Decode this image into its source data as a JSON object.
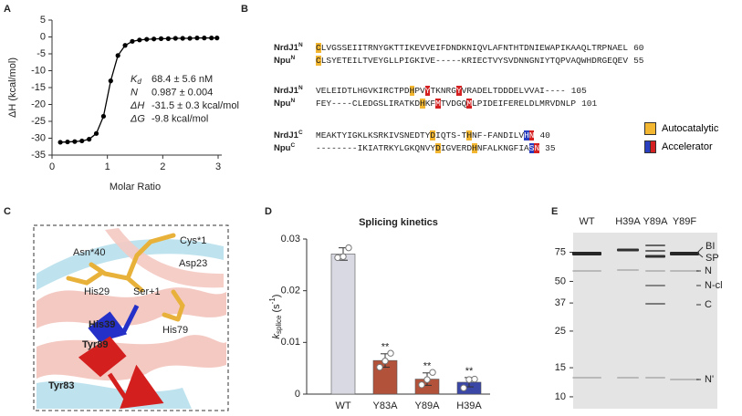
{
  "panels": [
    "A",
    "B",
    "C",
    "D",
    "E"
  ],
  "chart_data": [
    {
      "type": "line",
      "x_label": "Molar Ratio",
      "y_label": "ΔH (kcal/mol)",
      "x": [
        0.15,
        0.28,
        0.41,
        0.54,
        0.67,
        0.8,
        0.93,
        1.06,
        1.19,
        1.32,
        1.45,
        1.58,
        1.71,
        1.84,
        1.97,
        2.1,
        2.23,
        2.36,
        2.49,
        2.62,
        2.75,
        2.88,
        2.98
      ],
      "values": [
        -31.2,
        -31.1,
        -31,
        -30.8,
        -30.3,
        -28.6,
        -23.5,
        -13,
        -5.5,
        -2.5,
        -1.3,
        -0.9,
        -0.7,
        -0.6,
        -0.5,
        -0.5,
        -0.4,
        -0.4,
        -0.4,
        -0.3,
        -0.3,
        -0.3,
        -0.3
      ],
      "color": "#000000",
      "xlim": [
        0,
        3
      ],
      "xticks": [
        0,
        1,
        2,
        3
      ],
      "ylim": [
        -35,
        5
      ],
      "yticks": [
        5,
        0,
        -5,
        -10,
        -15,
        -20,
        -25,
        -30,
        -35
      ],
      "annotations": [
        {
          "symbol": "K",
          "sub": "d",
          "text": "68.4 ± 5.6 nM"
        },
        {
          "symbol": "N",
          "text": "0.987 ± 0.004"
        },
        {
          "symbol": "ΔH",
          "text": "-31.5 ± 0.3 kcal/mol"
        },
        {
          "symbol": "ΔG",
          "text": "-9.8 kcal/mol"
        }
      ]
    },
    {
      "type": "bar",
      "title": "Splicing kinetics",
      "y_label": {
        "symbol": "k",
        "sub": "splice",
        "unit": " (s",
        "sup": "-1",
        "close": ")"
      },
      "categories": [
        "WT",
        "Y83A",
        "Y89A",
        "H39A"
      ],
      "values": [
        0.0271,
        0.0065,
        0.0029,
        0.0023
      ],
      "errors": [
        0.0012,
        0.0013,
        0.0012,
        0.0009
      ],
      "points": [
        [
          0.0264,
          0.0266,
          0.0283
        ],
        [
          0.0052,
          0.0064,
          0.0079
        ],
        [
          0.0018,
          0.0028,
          0.0042
        ],
        [
          0.0012,
          0.0028,
          0.0029
        ]
      ],
      "significance": [
        null,
        "**",
        "**",
        "**"
      ],
      "colors": [
        "#d9d9e4",
        "#b3523b",
        "#b3523b",
        "#3a47a6"
      ],
      "ylim": [
        0,
        0.03
      ],
      "yticks": [
        0,
        0.01,
        0.02,
        0.03
      ]
    }
  ],
  "alignment": {
    "blocks": [
      [
        {
          "name": "NrdJ1",
          "sup": "N",
          "segments": [
            {
              "text": "C",
              "highlight": "#f2b630"
            },
            {
              "text": "LVGSSEIITRNYGKTTIKEVVEIFDNDKNIQVLAFNTHTDNIEWAPIKAAQLTRPNAEL"
            }
          ],
          "end": 60
        },
        {
          "name": "Npu",
          "sup": "N",
          "segments": [
            {
              "text": "C",
              "highlight": "#f2b630"
            },
            {
              "text": "LSYETEILTVEYGLLPIGKIVE-----KRIECTVYSVDNNGNIYTQPVAQWHDRGEQEV"
            }
          ],
          "end": 55
        }
      ],
      [
        {
          "name": "NrdJ1",
          "sup": "N",
          "segments": [
            {
              "text": "VELEIDTLHGVKIRCTPD"
            },
            {
              "text": "H",
              "highlight": "#f2b630"
            },
            {
              "text": "PV"
            },
            {
              "text": "Y",
              "highlight": "#d42020"
            },
            {
              "text": "TKNRG"
            },
            {
              "text": "Y",
              "highlight": "#d42020"
            },
            {
              "text": "VRADELTDDDELVVAI----"
            }
          ],
          "end": 105
        },
        {
          "name": "Npu",
          "sup": "N",
          "segments": [
            {
              "text": "FEY----CLEDGSLIRATKD"
            },
            {
              "text": "H",
              "highlight": "#f2b630"
            },
            {
              "text": "KF"
            },
            {
              "text": "M",
              "highlight": "#d42020"
            },
            {
              "text": "TVDGQ"
            },
            {
              "text": "M",
              "highlight": "#d42020"
            },
            {
              "text": "LPIDEIFERELDLMRVDNLP"
            }
          ],
          "end": 101
        }
      ],
      [
        {
          "name": "NrdJ1",
          "sup": "C",
          "segments": [
            {
              "text": "MEAKTYIGKLKSRKIVSNEDTY"
            },
            {
              "text": "D",
              "highlight": "#f2b630"
            },
            {
              "text": "IQTS-T"
            },
            {
              "text": "H",
              "highlight": "#f2b630"
            },
            {
              "text": "NF-FANDILV"
            },
            {
              "text": "H",
              "highlight": "#2a3fbf"
            },
            {
              "text": "N",
              "highlight": "#d42020"
            }
          ],
          "end": 40
        },
        {
          "name": "Npu",
          "sup": "C",
          "segments": [
            {
              "text": "--------IKIATRKYLGKQNVY"
            },
            {
              "text": "D",
              "highlight": "#f2b630"
            },
            {
              "text": "IGVERD"
            },
            {
              "text": "H",
              "highlight": "#f2b630"
            },
            {
              "text": "NFALKNGFIA"
            },
            {
              "text": "S",
              "highlight": "#2a3fbf"
            },
            {
              "text": "N",
              "highlight": "#d42020"
            }
          ],
          "end": 35
        }
      ]
    ],
    "legend": [
      {
        "label": "Autocatalytic",
        "colors": [
          "#f2b630"
        ]
      },
      {
        "label": "Accelerator",
        "colors": [
          "#2a3fbf",
          "#d42020"
        ]
      }
    ]
  },
  "structure": {
    "labels": [
      {
        "text": "Cys*1",
        "color": "#000000"
      },
      {
        "text": "Asn*40",
        "color": "#000000"
      },
      {
        "text": "Asp23",
        "color": "#000000"
      },
      {
        "text": "His29",
        "color": "#000000"
      },
      {
        "text": "Ser+1",
        "color": "#000000"
      },
      {
        "text": "His39",
        "color": "#2430c8"
      },
      {
        "text": "His79",
        "color": "#000000"
      },
      {
        "text": "Tyr89",
        "color": "#d41f1f"
      },
      {
        "text": "Tyr83",
        "color": "#d41f1f"
      }
    ]
  },
  "gel": {
    "lanes": [
      "WT",
      "H39A",
      "Y89A",
      "Y89F"
    ],
    "markers": [
      75,
      50,
      37,
      25,
      15,
      10
    ],
    "ylim": [
      95,
      8.8
    ],
    "log": true,
    "band_labels": [
      "BI",
      "SP",
      "N",
      "N-cl",
      "C",
      "N'"
    ]
  }
}
